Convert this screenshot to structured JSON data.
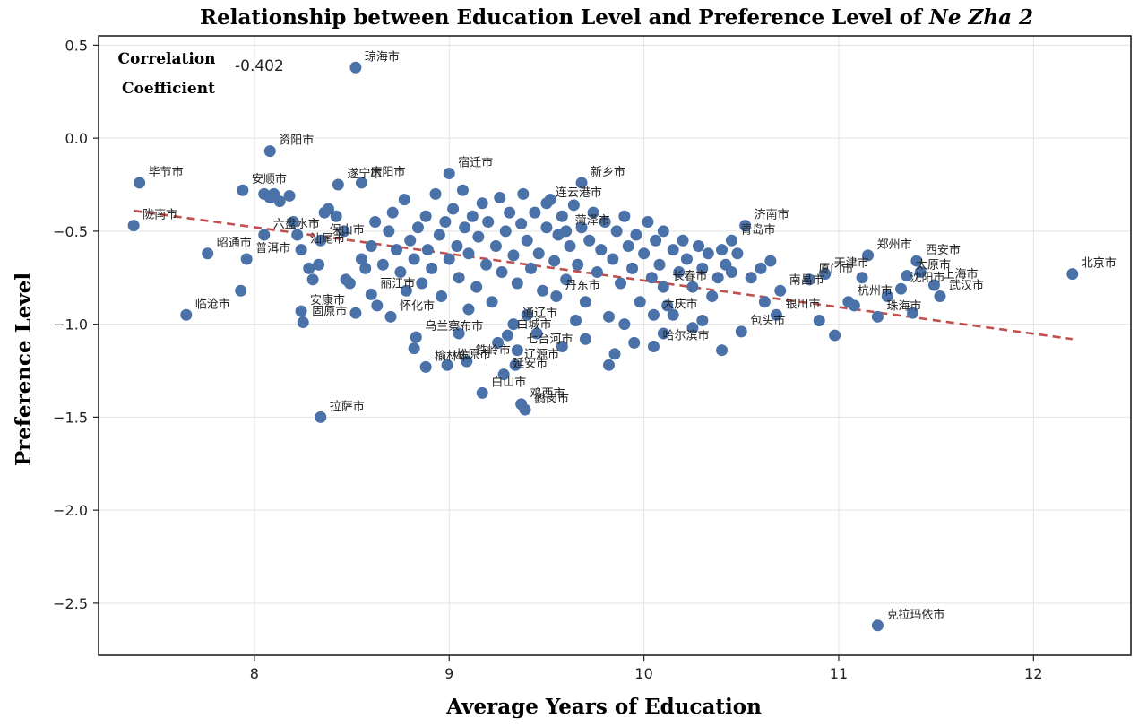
{
  "chart_data": {
    "type": "scatter",
    "title_main": "Relationship between Education Level and Preference Level of ",
    "title_italic": "Ne Zha 2",
    "xlabel": "Average Years of Education",
    "ylabel": "Preference Level",
    "xlim": [
      7.2,
      12.5
    ],
    "ylim": [
      -2.78,
      0.55
    ],
    "xticks": [
      8,
      9,
      10,
      11,
      12
    ],
    "yticks": [
      0.5,
      0.0,
      -0.5,
      -1.0,
      -1.5,
      -2.0,
      -2.5
    ],
    "xtick_labels": [
      "8",
      "9",
      "10",
      "11",
      "12"
    ],
    "ytick_labels": [
      "0.5",
      "0.0",
      "−0.5",
      "−1.0",
      "−1.5",
      "−2.0",
      "−2.5"
    ],
    "grid": true,
    "point_color": "#4a72a8",
    "trend_color": "#c0504d",
    "correlation": {
      "label_line1": "Correlation",
      "label_line2": "Coefficient",
      "value": "-0.402"
    },
    "trend_line": [
      [
        7.38,
        -0.39
      ],
      [
        12.2,
        -1.08
      ]
    ],
    "labeled_points": [
      {
        "name": "琼海市",
        "x": 8.52,
        "y": 0.38
      },
      {
        "name": "资阳市",
        "x": 8.08,
        "y": -0.07
      },
      {
        "name": "毕节市",
        "x": 7.41,
        "y": -0.24
      },
      {
        "name": "陇南市",
        "x": 7.38,
        "y": -0.47
      },
      {
        "name": "昭通市",
        "x": 7.76,
        "y": -0.62
      },
      {
        "name": "普洱市",
        "x": 7.96,
        "y": -0.65
      },
      {
        "name": "临沧市",
        "x": 7.65,
        "y": -0.95
      },
      {
        "name": "安顺市",
        "x": 7.94,
        "y": -0.28
      },
      {
        "name": "六盘水市",
        "x": 8.05,
        "y": -0.52
      },
      {
        "name": "汕尾市",
        "x": 8.24,
        "y": -0.6
      },
      {
        "name": "保山市",
        "x": 8.34,
        "y": -0.55
      },
      {
        "name": "安康市",
        "x": 8.24,
        "y": -0.93
      },
      {
        "name": "固原市",
        "x": 8.25,
        "y": -0.99
      },
      {
        "name": "遂宁市",
        "x": 8.43,
        "y": -0.25
      },
      {
        "name": "庆阳市",
        "x": 8.55,
        "y": -0.24
      },
      {
        "name": "宿迁市",
        "x": 9.0,
        "y": -0.19
      },
      {
        "name": "新乡市",
        "x": 9.68,
        "y": -0.24
      },
      {
        "name": "济南市",
        "x": 10.52,
        "y": -0.47
      },
      {
        "name": "青岛市",
        "x": 10.45,
        "y": -0.55
      },
      {
        "name": "郑州市",
        "x": 11.15,
        "y": -0.63
      },
      {
        "name": "西安市",
        "x": 11.4,
        "y": -0.66
      },
      {
        "name": "北京市",
        "x": 12.2,
        "y": -0.73
      },
      {
        "name": "天津市",
        "x": 10.93,
        "y": -0.73
      },
      {
        "name": "厦门市",
        "x": 10.85,
        "y": -0.76
      },
      {
        "name": "太原市",
        "x": 11.35,
        "y": -0.74
      },
      {
        "name": "上海市",
        "x": 11.49,
        "y": -0.79
      },
      {
        "name": "武汉市",
        "x": 11.52,
        "y": -0.85
      },
      {
        "name": "南昌市",
        "x": 10.7,
        "y": -0.82
      },
      {
        "name": "杭州市",
        "x": 11.05,
        "y": -0.88
      },
      {
        "name": "沈阳市",
        "x": 11.32,
        "y": -0.81
      },
      {
        "name": "银川市",
        "x": 10.68,
        "y": -0.95
      },
      {
        "name": "珠海市",
        "x": 11.2,
        "y": -0.96
      },
      {
        "name": "包头市",
        "x": 10.5,
        "y": -1.04
      },
      {
        "name": "哈尔滨市",
        "x": 10.05,
        "y": -1.12
      },
      {
        "name": "乌兰察布市",
        "x": 8.83,
        "y": -1.07
      },
      {
        "name": "通辽市",
        "x": 9.33,
        "y": -1.0
      },
      {
        "name": "白城市",
        "x": 9.3,
        "y": -1.06
      },
      {
        "name": "榆林市",
        "x": 8.88,
        "y": -1.23
      },
      {
        "name": "松原市",
        "x": 8.99,
        "y": -1.22
      },
      {
        "name": "铁岭市",
        "x": 9.09,
        "y": -1.2
      },
      {
        "name": "七台河市",
        "x": 9.35,
        "y": -1.14
      },
      {
        "name": "辽源市",
        "x": 9.34,
        "y": -1.22
      },
      {
        "name": "延安市",
        "x": 9.28,
        "y": -1.27
      },
      {
        "name": "白山市",
        "x": 9.17,
        "y": -1.37
      },
      {
        "name": "鸡西市",
        "x": 9.37,
        "y": -1.43
      },
      {
        "name": "鹤岗市",
        "x": 9.39,
        "y": -1.46
      },
      {
        "name": "拉萨市",
        "x": 8.34,
        "y": -1.5
      },
      {
        "name": "克拉玛依市",
        "x": 11.2,
        "y": -2.62
      },
      {
        "name": "丽江市",
        "x": 8.6,
        "y": -0.84
      },
      {
        "name": "怀化市",
        "x": 8.7,
        "y": -0.96
      },
      {
        "name": "丹东市",
        "x": 9.55,
        "y": -0.85
      },
      {
        "name": "大庆市",
        "x": 10.05,
        "y": -0.95
      },
      {
        "name": "长春市",
        "x": 10.1,
        "y": -0.8
      },
      {
        "name": "连云港市",
        "x": 9.5,
        "y": -0.35
      },
      {
        "name": "菏泽市",
        "x": 9.6,
        "y": -0.5
      }
    ],
    "unlabeled_points": [
      [
        7.93,
        -0.82
      ],
      [
        8.05,
        -0.3
      ],
      [
        8.08,
        -0.32
      ],
      [
        8.1,
        -0.3
      ],
      [
        8.13,
        -0.34
      ],
      [
        8.18,
        -0.31
      ],
      [
        8.2,
        -0.45
      ],
      [
        8.22,
        -0.52
      ],
      [
        8.28,
        -0.7
      ],
      [
        8.3,
        -0.76
      ],
      [
        8.33,
        -0.68
      ],
      [
        8.36,
        -0.4
      ],
      [
        8.38,
        -0.38
      ],
      [
        8.42,
        -0.42
      ],
      [
        8.46,
        -0.5
      ],
      [
        8.47,
        -0.76
      ],
      [
        8.49,
        -0.78
      ],
      [
        8.52,
        -0.94
      ],
      [
        8.55,
        -0.65
      ],
      [
        8.57,
        -0.7
      ],
      [
        8.6,
        -0.58
      ],
      [
        8.62,
        -0.45
      ],
      [
        8.63,
        -0.9
      ],
      [
        8.66,
        -0.68
      ],
      [
        8.69,
        -0.5
      ],
      [
        8.71,
        -0.4
      ],
      [
        8.73,
        -0.6
      ],
      [
        8.75,
        -0.72
      ],
      [
        8.77,
        -0.33
      ],
      [
        8.78,
        -0.82
      ],
      [
        8.8,
        -0.55
      ],
      [
        8.82,
        -0.65
      ],
      [
        8.84,
        -0.48
      ],
      [
        8.86,
        -0.78
      ],
      [
        8.88,
        -0.42
      ],
      [
        8.89,
        -0.6
      ],
      [
        8.91,
        -0.7
      ],
      [
        8.93,
        -0.3
      ],
      [
        8.95,
        -0.52
      ],
      [
        8.96,
        -0.85
      ],
      [
        8.98,
        -0.45
      ],
      [
        9.0,
        -0.65
      ],
      [
        9.02,
        -0.38
      ],
      [
        9.04,
        -0.58
      ],
      [
        9.05,
        -0.75
      ],
      [
        9.07,
        -0.28
      ],
      [
        9.08,
        -0.48
      ],
      [
        9.1,
        -0.62
      ],
      [
        9.12,
        -0.42
      ],
      [
        9.14,
        -0.8
      ],
      [
        9.15,
        -0.53
      ],
      [
        9.17,
        -0.35
      ],
      [
        9.19,
        -0.68
      ],
      [
        9.2,
        -0.45
      ],
      [
        9.22,
        -0.88
      ],
      [
        9.24,
        -0.58
      ],
      [
        9.26,
        -0.32
      ],
      [
        9.27,
        -0.72
      ],
      [
        9.29,
        -0.5
      ],
      [
        9.31,
        -0.4
      ],
      [
        9.33,
        -0.63
      ],
      [
        9.35,
        -0.78
      ],
      [
        9.37,
        -0.46
      ],
      [
        9.38,
        -0.3
      ],
      [
        9.4,
        -0.55
      ],
      [
        9.42,
        -0.7
      ],
      [
        9.44,
        -0.4
      ],
      [
        9.46,
        -0.62
      ],
      [
        9.48,
        -0.82
      ],
      [
        9.5,
        -0.48
      ],
      [
        9.52,
        -0.33
      ],
      [
        9.54,
        -0.66
      ],
      [
        9.56,
        -0.52
      ],
      [
        9.58,
        -0.42
      ],
      [
        9.6,
        -0.76
      ],
      [
        9.62,
        -0.58
      ],
      [
        9.64,
        -0.36
      ],
      [
        9.66,
        -0.68
      ],
      [
        9.68,
        -0.48
      ],
      [
        9.7,
        -0.88
      ],
      [
        9.72,
        -0.55
      ],
      [
        9.74,
        -0.4
      ],
      [
        9.76,
        -0.72
      ],
      [
        9.78,
        -0.6
      ],
      [
        9.8,
        -0.45
      ],
      [
        9.82,
        -0.96
      ],
      [
        9.84,
        -0.65
      ],
      [
        9.86,
        -0.5
      ],
      [
        9.88,
        -0.78
      ],
      [
        9.9,
        -0.42
      ],
      [
        9.92,
        -0.58
      ],
      [
        9.94,
        -0.7
      ],
      [
        9.96,
        -0.52
      ],
      [
        9.98,
        -0.88
      ],
      [
        10.0,
        -0.62
      ],
      [
        10.02,
        -0.45
      ],
      [
        10.04,
        -0.75
      ],
      [
        10.06,
        -0.55
      ],
      [
        10.08,
        -0.68
      ],
      [
        10.1,
        -0.5
      ],
      [
        10.12,
        -0.9
      ],
      [
        10.15,
        -0.6
      ],
      [
        10.18,
        -0.72
      ],
      [
        10.2,
        -0.55
      ],
      [
        10.22,
        -0.65
      ],
      [
        10.25,
        -0.8
      ],
      [
        10.28,
        -0.58
      ],
      [
        10.3,
        -0.7
      ],
      [
        10.33,
        -0.62
      ],
      [
        10.35,
        -0.85
      ],
      [
        10.38,
        -0.75
      ],
      [
        10.4,
        -0.6
      ],
      [
        10.42,
        -0.68
      ],
      [
        10.45,
        -0.72
      ],
      [
        10.48,
        -0.62
      ],
      [
        10.55,
        -0.75
      ],
      [
        10.6,
        -0.7
      ],
      [
        10.62,
        -0.88
      ],
      [
        10.65,
        -0.66
      ],
      [
        10.9,
        -0.98
      ],
      [
        10.98,
        -1.06
      ],
      [
        11.08,
        -0.9
      ],
      [
        11.12,
        -0.75
      ],
      [
        11.25,
        -0.85
      ],
      [
        11.38,
        -0.94
      ],
      [
        11.42,
        -0.72
      ],
      [
        8.82,
        -1.13
      ],
      [
        9.05,
        -1.05
      ],
      [
        9.25,
        -1.1
      ],
      [
        9.45,
        -1.05
      ],
      [
        9.58,
        -1.12
      ],
      [
        9.7,
        -1.08
      ],
      [
        9.82,
        -1.22
      ],
      [
        9.85,
        -1.16
      ],
      [
        9.95,
        -1.1
      ],
      [
        10.1,
        -1.05
      ],
      [
        10.25,
        -1.02
      ],
      [
        10.4,
        -1.14
      ],
      [
        9.1,
        -0.92
      ],
      [
        9.4,
        -0.95
      ],
      [
        9.65,
        -0.98
      ],
      [
        9.9,
        -1.0
      ],
      [
        10.15,
        -0.95
      ],
      [
        10.3,
        -0.98
      ]
    ]
  }
}
